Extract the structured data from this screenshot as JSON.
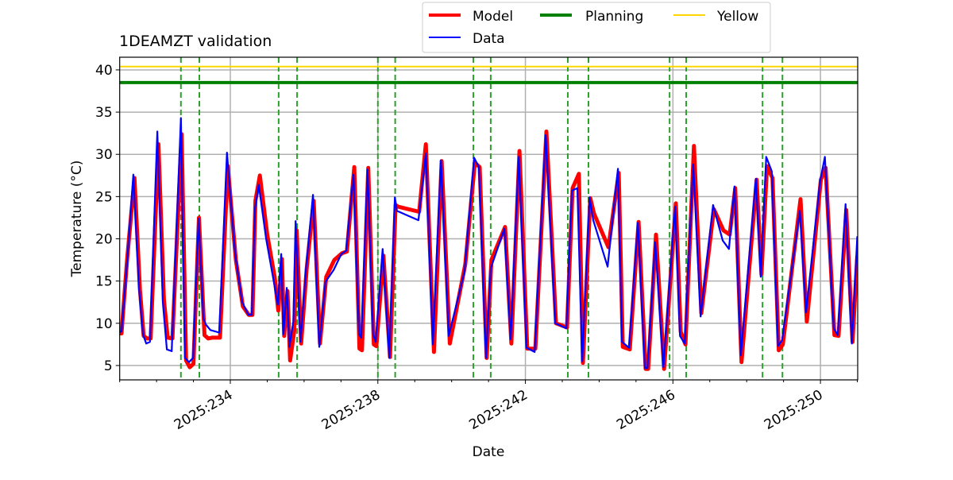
{
  "chart_data": {
    "type": "line",
    "title": "1DEAMZT validation",
    "xlabel": "Date",
    "ylabel": "Temperature (°C)",
    "xlim": [
      231.0,
      251.01
    ],
    "ylim": [
      3.3,
      41.5
    ],
    "grid": true,
    "legend_position": "top-center",
    "x_ticks": [
      234,
      238,
      242,
      246,
      250
    ],
    "x_tick_labels": [
      "2025:234",
      "2025:238",
      "2025:242",
      "2025:246",
      "2025:250"
    ],
    "x_minor_ticks": [
      231,
      232,
      233,
      235,
      236,
      237,
      239,
      240,
      241,
      243,
      244,
      245,
      247,
      248,
      249,
      251
    ],
    "y_ticks": [
      5,
      10,
      15,
      20,
      25,
      30,
      35,
      40
    ],
    "y_tick_labels": [
      "5",
      "10",
      "15",
      "20",
      "25",
      "30",
      "35",
      "40"
    ],
    "legend": [
      {
        "label": "Model",
        "color": "#ff0000"
      },
      {
        "label": "Data",
        "color": "#0000ff"
      },
      {
        "label": "Planning",
        "color": "#008000"
      },
      {
        "label": "Yellow",
        "color": "#ffd700"
      }
    ],
    "hlines": [
      {
        "name": "Planning",
        "value": 38.5,
        "color": "#008000"
      },
      {
        "name": "Yellow",
        "value": 40.4,
        "color": "#ffd700"
      }
    ],
    "vlines_dashed": {
      "color": "#2ca02c",
      "x": [
        232.66,
        233.16,
        235.31,
        235.81,
        238.0,
        238.47,
        240.59,
        241.06,
        243.15,
        243.71,
        245.91,
        246.36,
        248.43,
        248.97
      ]
    },
    "series": [
      {
        "name": "Data",
        "color": "#0000ff",
        "x": [
          231.0,
          231.05,
          231.2,
          231.37,
          231.52,
          231.63,
          231.72,
          231.82,
          232.02,
          232.17,
          232.28,
          232.41,
          232.66,
          232.77,
          232.88,
          232.99,
          233.14,
          233.27,
          233.33,
          233.46,
          233.7,
          233.91,
          234.13,
          234.32,
          234.49,
          234.58,
          234.67,
          234.77,
          234.97,
          235.18,
          235.29,
          235.38,
          235.44,
          235.53,
          235.6,
          235.71,
          235.77,
          235.9,
          236.05,
          236.24,
          236.41,
          236.58,
          236.8,
          237.01,
          237.14,
          237.34,
          237.49,
          237.55,
          237.72,
          237.87,
          237.94,
          238.13,
          238.31,
          238.46,
          238.52,
          239.1,
          239.3,
          239.49,
          239.71,
          239.92,
          240.35,
          240.61,
          240.74,
          240.93,
          241.06,
          241.43,
          241.6,
          241.82,
          242.03,
          242.25,
          242.55,
          242.81,
          243.11,
          243.26,
          243.41,
          243.54,
          243.74,
          243.84,
          244.23,
          244.51,
          244.62,
          244.81,
          245.05,
          245.24,
          245.31,
          245.52,
          245.74,
          246.06,
          246.19,
          246.32,
          246.55,
          246.75,
          247.09,
          247.35,
          247.52,
          247.67,
          247.84,
          248.25,
          248.38,
          248.53,
          248.68,
          248.85,
          248.96,
          249.44,
          249.61,
          249.99,
          250.12,
          250.36,
          250.47,
          250.68,
          250.85,
          251.0
        ],
        "y": [
          9.0,
          9.0,
          17.2,
          27.6,
          14.4,
          8.7,
          7.6,
          7.8,
          32.7,
          12.5,
          6.9,
          6.7,
          34.3,
          5.9,
          5.4,
          5.9,
          22.4,
          10.6,
          9.9,
          9.2,
          8.9,
          30.2,
          18.2,
          12.5,
          11.0,
          11.0,
          23.6,
          26.4,
          20.0,
          14.9,
          12.2,
          18.2,
          8.7,
          14.2,
          7.2,
          10.2,
          22.1,
          7.8,
          16.3,
          25.2,
          7.2,
          14.9,
          16.3,
          18.2,
          18.6,
          27.6,
          8.7,
          8.3,
          28.2,
          8.7,
          7.8,
          18.8,
          5.9,
          24.9,
          23.3,
          22.2,
          30.1,
          7.5,
          29.3,
          8.5,
          16.1,
          29.6,
          28.5,
          5.9,
          16.5,
          21.2,
          8.1,
          29.7,
          7.1,
          6.6,
          32.3,
          10.0,
          9.4,
          25.7,
          26.0,
          5.5,
          24.9,
          22.2,
          16.7,
          28.3,
          7.8,
          7.1,
          21.9,
          4.7,
          4.7,
          19.6,
          4.8,
          23.8,
          8.5,
          7.6,
          28.8,
          10.8,
          24.0,
          19.8,
          18.8,
          26.2,
          6.2,
          27.1,
          15.5,
          29.7,
          28.0,
          7.3,
          8.0,
          23.3,
          11.3,
          26.8,
          29.7,
          9.4,
          8.6,
          24.1,
          7.6,
          20.3
        ]
      },
      {
        "name": "Model",
        "color": "#ff0000",
        "x": [
          231.0,
          231.05,
          231.2,
          231.4,
          231.55,
          231.65,
          231.74,
          231.84,
          232.05,
          232.2,
          232.3,
          232.43,
          232.68,
          232.8,
          232.9,
          233.0,
          233.15,
          233.3,
          233.4,
          233.5,
          233.72,
          233.93,
          234.15,
          234.34,
          234.5,
          234.6,
          234.68,
          234.8,
          235.0,
          235.2,
          235.3,
          235.4,
          235.46,
          235.55,
          235.62,
          235.73,
          235.8,
          235.92,
          236.07,
          236.26,
          236.43,
          236.6,
          236.82,
          237.03,
          237.16,
          237.36,
          237.5,
          237.57,
          237.74,
          237.89,
          237.96,
          238.15,
          238.33,
          238.48,
          238.55,
          239.12,
          239.3,
          239.52,
          239.73,
          239.95,
          240.37,
          240.63,
          240.76,
          240.95,
          241.08,
          241.45,
          241.62,
          241.84,
          242.05,
          242.27,
          242.57,
          242.83,
          243.13,
          243.28,
          243.45,
          243.56,
          243.76,
          243.86,
          244.25,
          244.53,
          244.64,
          244.83,
          245.07,
          245.26,
          245.33,
          245.54,
          245.76,
          246.08,
          246.21,
          246.34,
          246.57,
          246.77,
          247.11,
          247.37,
          247.54,
          247.69,
          247.86,
          248.27,
          248.4,
          248.55,
          248.7,
          248.87,
          248.98,
          249.46,
          249.63,
          250.01,
          250.14,
          250.38,
          250.49,
          250.7,
          250.87,
          251.0
        ],
        "y": [
          8.8,
          8.8,
          17.5,
          27.2,
          14.0,
          8.5,
          8.2,
          8.2,
          31.2,
          12.8,
          8.3,
          8.2,
          32.4,
          5.6,
          4.8,
          5.2,
          22.5,
          8.6,
          8.2,
          8.3,
          8.3,
          28.6,
          17.5,
          12.0,
          11.0,
          11.0,
          24.5,
          27.5,
          20.5,
          15.5,
          11.5,
          17.6,
          8.5,
          13.8,
          5.6,
          9.0,
          21.0,
          7.6,
          16.5,
          24.5,
          7.6,
          15.5,
          17.5,
          18.3,
          18.5,
          28.5,
          7.0,
          6.8,
          28.4,
          7.5,
          7.3,
          18.0,
          6.0,
          24.0,
          23.8,
          23.2,
          31.2,
          6.6,
          29.2,
          7.6,
          17.0,
          29.0,
          28.5,
          5.9,
          17.5,
          21.4,
          7.6,
          30.4,
          7.0,
          7.0,
          32.7,
          10.0,
          9.5,
          26.0,
          27.7,
          5.3,
          24.8,
          23.0,
          19.0,
          27.8,
          7.2,
          6.9,
          22.0,
          4.6,
          4.6,
          20.5,
          4.6,
          24.2,
          9.0,
          7.5,
          31.0,
          11.2,
          23.5,
          21.0,
          20.5,
          26.0,
          5.4,
          27.0,
          15.8,
          28.6,
          27.2,
          6.8,
          7.5,
          24.7,
          10.2,
          27.0,
          28.4,
          8.6,
          8.5,
          23.4,
          7.8,
          18.0
        ]
      }
    ]
  }
}
